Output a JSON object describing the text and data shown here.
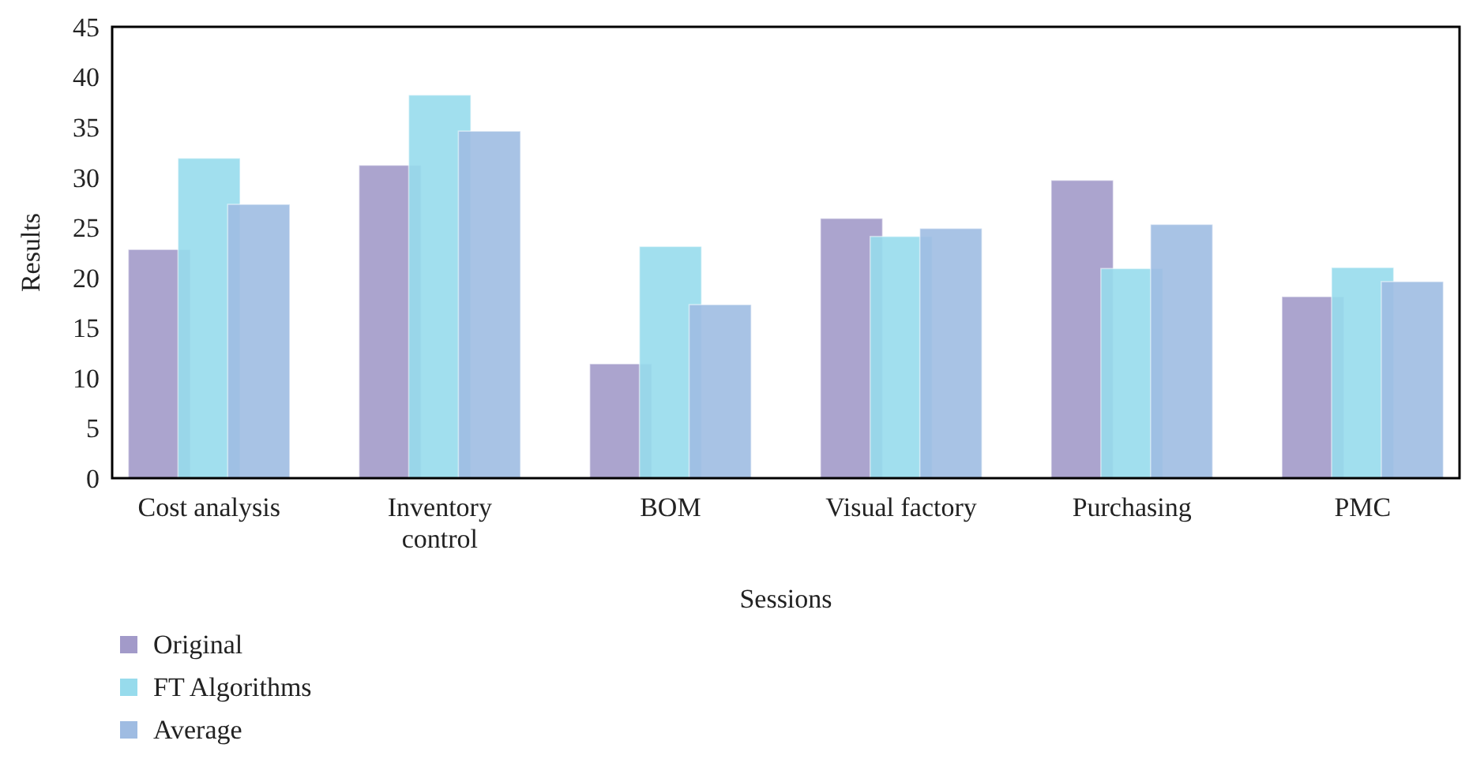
{
  "chart_data": {
    "type": "bar",
    "xlabel": "Sessions",
    "ylabel": "Results",
    "categories": [
      "Cost analysis",
      "Inventory control",
      "BOM",
      "Visual factory",
      "Purchasing",
      "PMC"
    ],
    "series": [
      {
        "name": "Original",
        "color": "#a29ac9",
        "values": [
          22.8,
          31.2,
          11.4,
          25.9,
          29.7,
          18.1
        ]
      },
      {
        "name": "FT Algorithms",
        "color": "#97dbec",
        "values": [
          31.9,
          38.2,
          23.1,
          24.1,
          20.9,
          21.0
        ]
      },
      {
        "name": "Average",
        "color": "#9fbce2",
        "values": [
          27.3,
          34.6,
          17.3,
          24.9,
          25.3,
          19.6
        ]
      }
    ],
    "ylim": [
      0,
      45
    ],
    "yticks": [
      0,
      5,
      10,
      15,
      20,
      25,
      30,
      35,
      40,
      45
    ],
    "grid": false,
    "legend": "bottom left"
  }
}
